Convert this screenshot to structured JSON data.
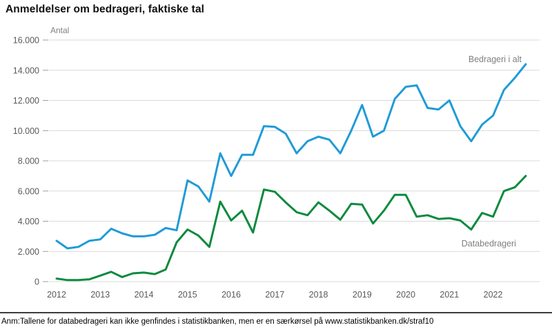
{
  "title": "Anmeldelser om bedrageri, faktiske tal",
  "footer": {
    "note": "Anm:Tallene for databedrageri kan ikke genfindes i statistikbanken, men er en særkørsel på www.statistikbanken.dk/straf10"
  },
  "colors": {
    "total_line": "#1f9bd7",
    "data_line": "#0b8a3e",
    "gridline": "#d9d9d9",
    "tick": "#9c9c9c",
    "axis_text": "#595959",
    "series_label_text": "#7f7f7f"
  },
  "chart_data": {
    "type": "line",
    "title": "Anmeldelser om bedrageri, faktiske tal",
    "xlabel": "",
    "ylabel": "Antal",
    "ylim": [
      0,
      16000
    ],
    "ytick_interval": 2000,
    "ytick_labels": [
      "0",
      "2.000",
      "4.000",
      "6.000",
      "8.000",
      "10.000",
      "12.000",
      "14.000",
      "16.000"
    ],
    "x_years": [
      "2012",
      "2013",
      "2014",
      "2015",
      "2016",
      "2017",
      "2018",
      "2019",
      "2020",
      "2021",
      "2022"
    ],
    "quarters_per_year": 4,
    "x_unit": "quarter",
    "grid": "horizontal",
    "legend_position": "inline-labels-right",
    "series": [
      {
        "name": "Bedrageri i alt",
        "color": "#1f9bd7",
        "values": [
          2700,
          2200,
          2300,
          2700,
          2800,
          3500,
          3200,
          3000,
          3000,
          3100,
          3550,
          3400,
          6700,
          6300,
          5300,
          8500,
          7000,
          8400,
          8400,
          10300,
          10250,
          9800,
          8500,
          9300,
          9600,
          9400,
          8500,
          10000,
          11700,
          9600,
          10000,
          12100,
          12900,
          13000,
          11500,
          11400,
          12000,
          10300,
          9300,
          10400,
          11000,
          12700,
          13500,
          14400
        ]
      },
      {
        "name": "Databedrageri",
        "color": "#0b8a3e",
        "values": [
          200,
          100,
          100,
          150,
          400,
          650,
          300,
          550,
          600,
          500,
          800,
          2600,
          3450,
          3050,
          2300,
          5300,
          4050,
          4700,
          3250,
          6100,
          5950,
          5250,
          4600,
          4400,
          5250,
          4700,
          4100,
          5150,
          5100,
          3850,
          4700,
          5750,
          5750,
          4300,
          4400,
          4150,
          4200,
          4050,
          3450,
          4550,
          4300,
          6000,
          6250,
          7000
        ]
      }
    ]
  }
}
